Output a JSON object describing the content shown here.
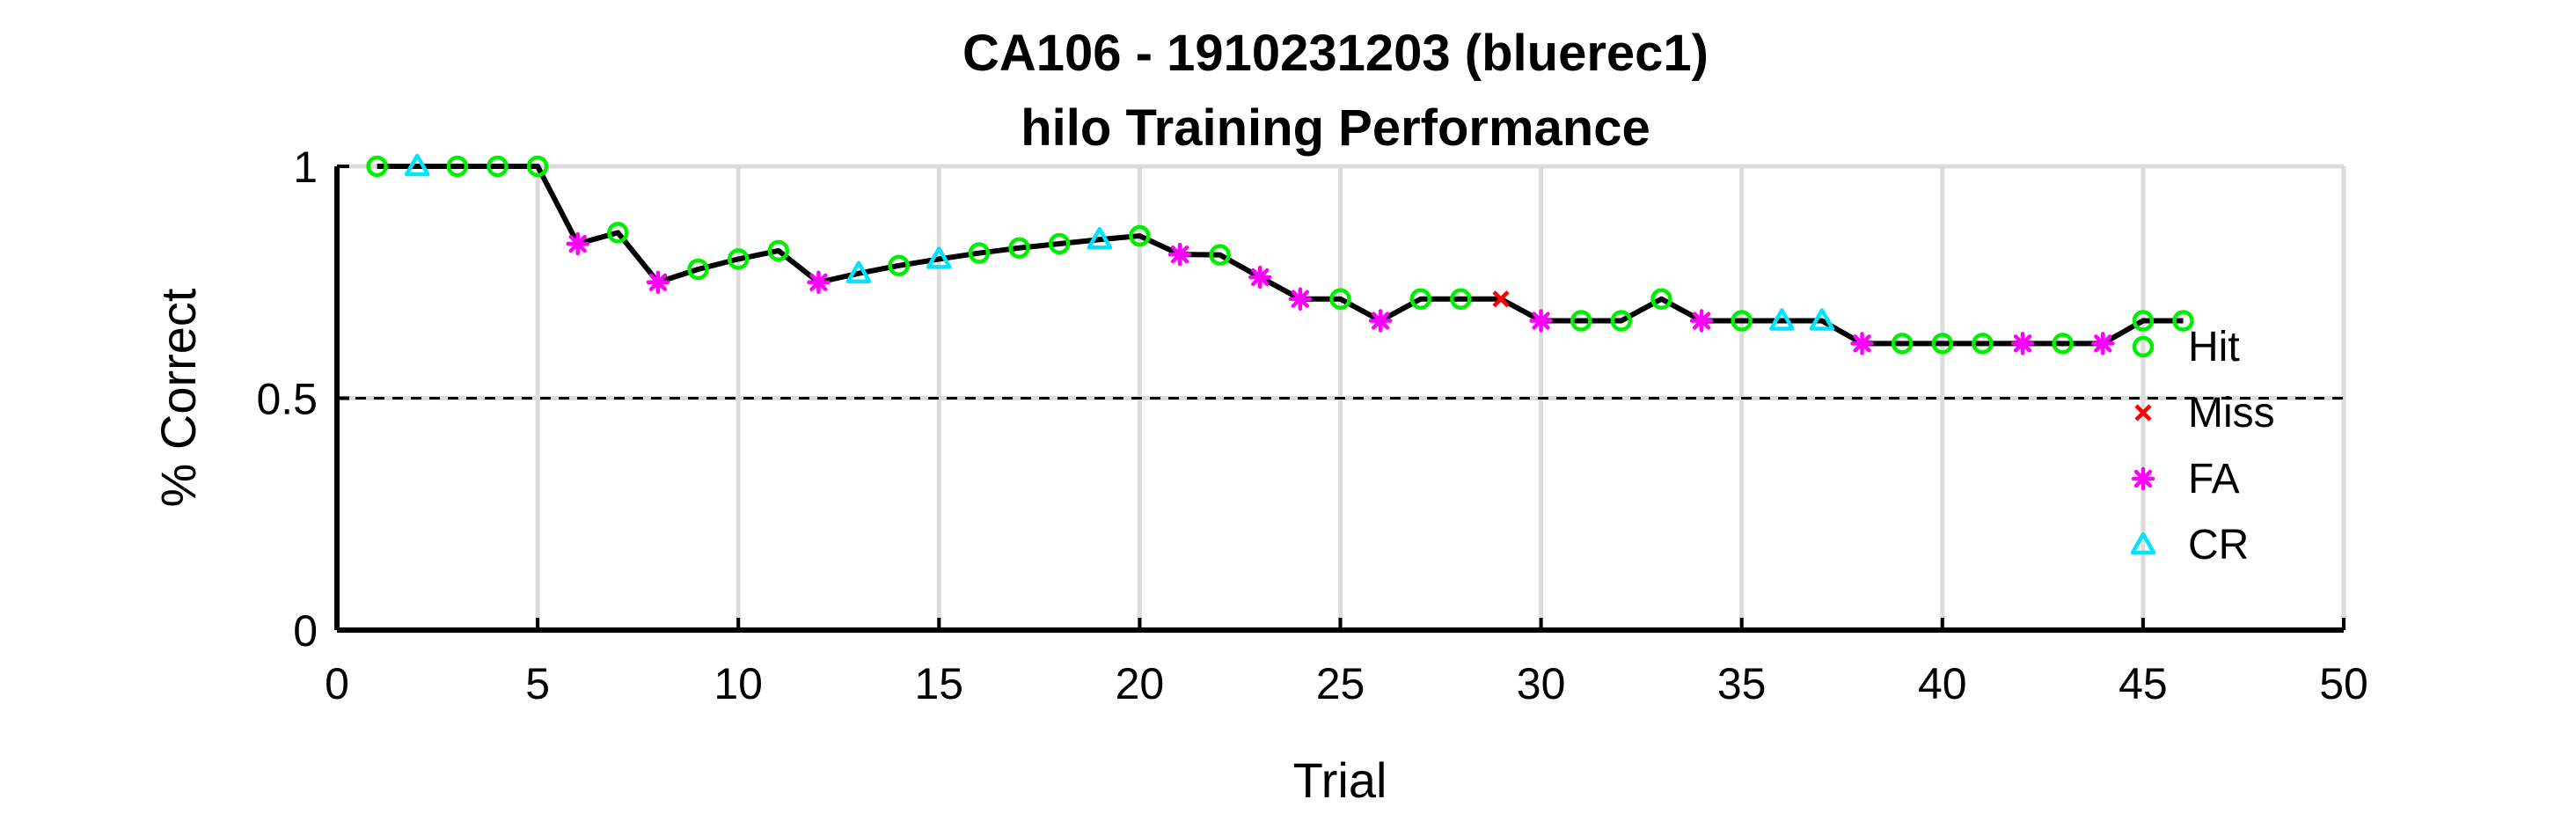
{
  "chart_data": {
    "type": "line",
    "title": "CA106 - 1910231203 (bluerec1)",
    "subtitle": "hilo Training Performance",
    "xlabel": "Trial",
    "ylabel": "% Correct",
    "xlim": [
      0,
      50
    ],
    "ylim": [
      0,
      1
    ],
    "xticks": [
      "0",
      "5",
      "10",
      "15",
      "20",
      "25",
      "30",
      "35",
      "40",
      "45",
      "50"
    ],
    "yticks": [
      "0",
      "0.5",
      "1"
    ],
    "grid": true,
    "reference_line": 0.5,
    "legend_position": "right",
    "line_color": "#000000",
    "x": [
      1,
      2,
      3,
      4,
      5,
      6,
      7,
      8,
      9,
      10,
      11,
      12,
      13,
      14,
      15,
      16,
      17,
      18,
      19,
      20,
      21,
      22,
      23,
      24,
      25,
      26,
      27,
      28,
      29,
      30,
      31,
      32,
      33,
      34,
      35,
      36,
      37,
      38,
      39,
      40,
      41,
      42,
      43,
      44,
      45,
      46
    ],
    "y": [
      1.0,
      1.0,
      1.0,
      1.0,
      1.0,
      0.833,
      0.857,
      0.75,
      0.778,
      0.8,
      0.818,
      0.75,
      0.769,
      0.786,
      0.8,
      0.813,
      0.824,
      0.833,
      0.842,
      0.85,
      0.81,
      0.809,
      0.761,
      0.714,
      0.714,
      0.667,
      0.714,
      0.714,
      0.714,
      0.667,
      0.667,
      0.667,
      0.714,
      0.667,
      0.667,
      0.667,
      0.667,
      0.618,
      0.618,
      0.618,
      0.618,
      0.618,
      0.618,
      0.618,
      0.667,
      0.667
    ],
    "outcomes": [
      "Hit",
      "CR",
      "Hit",
      "Hit",
      "Hit",
      "FA",
      "Hit",
      "FA",
      "Hit",
      "Hit",
      "Hit",
      "FA",
      "CR",
      "Hit",
      "CR",
      "Hit",
      "Hit",
      "Hit",
      "CR",
      "Hit",
      "FA",
      "Hit",
      "FA",
      "FA",
      "Hit",
      "FA",
      "Hit",
      "Hit",
      "Miss",
      "FA",
      "Hit",
      "Hit",
      "Hit",
      "FA",
      "Hit",
      "CR",
      "CR",
      "FA",
      "Hit",
      "Hit",
      "Hit",
      "FA",
      "Hit",
      "FA",
      "Hit",
      "Hit"
    ],
    "series": [
      {
        "name": "Hit",
        "marker": "circle",
        "color": "#00ee00"
      },
      {
        "name": "Miss",
        "marker": "x",
        "color": "#ff0000"
      },
      {
        "name": "FA",
        "marker": "asterisk",
        "color": "#ff00ff"
      },
      {
        "name": "CR",
        "marker": "triangle",
        "color": "#00e5ff"
      }
    ]
  }
}
